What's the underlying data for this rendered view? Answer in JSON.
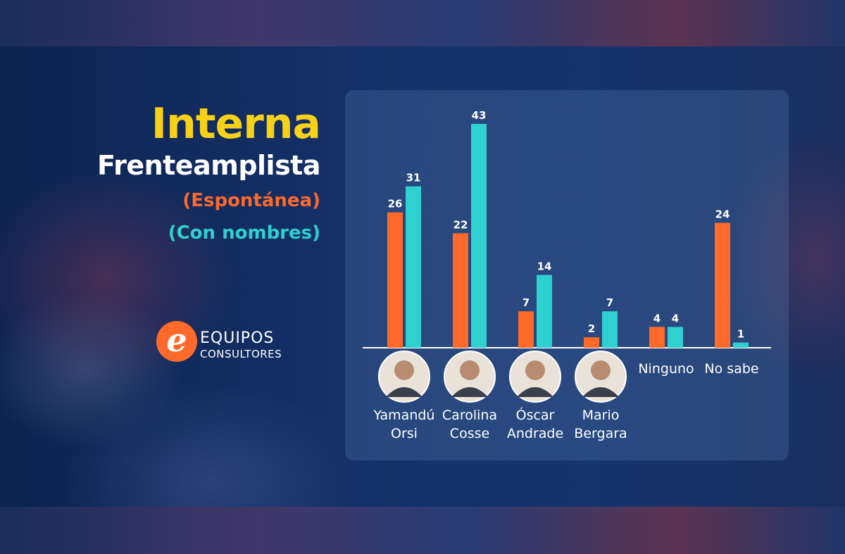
{
  "title": {
    "line1": "Interna",
    "line2": "Frenteamplista",
    "line3": "(Espontánea)",
    "line4": "(Con nombres)"
  },
  "logo": {
    "mark": "e",
    "line1": "EQUIPOS",
    "line2": "CONSULTORES"
  },
  "colors": {
    "espontanea": "#ff6a2a",
    "con_nombres": "#2fd0d0",
    "title_yellow": "#f7d117"
  },
  "chart_data": {
    "type": "bar",
    "categories": [
      [
        "Yamandú",
        "Orsi"
      ],
      [
        "Carolina",
        "Cosse"
      ],
      [
        "Óscar",
        "Andrade"
      ],
      [
        "Mario",
        "Bergara"
      ],
      [
        "Ninguno"
      ],
      [
        "No sabe"
      ]
    ],
    "has_photo": [
      true,
      true,
      true,
      true,
      false,
      false
    ],
    "series": [
      {
        "name": "(Espontánea)",
        "values": [
          26,
          22,
          7,
          2,
          4,
          24
        ]
      },
      {
        "name": "(Con nombres)",
        "values": [
          31,
          43,
          14,
          7,
          4,
          1
        ]
      }
    ],
    "title": "Interna Frenteamplista",
    "xlabel": "",
    "ylabel": "",
    "ylim": [
      0,
      43
    ],
    "grid": false,
    "legend": "top-left"
  }
}
